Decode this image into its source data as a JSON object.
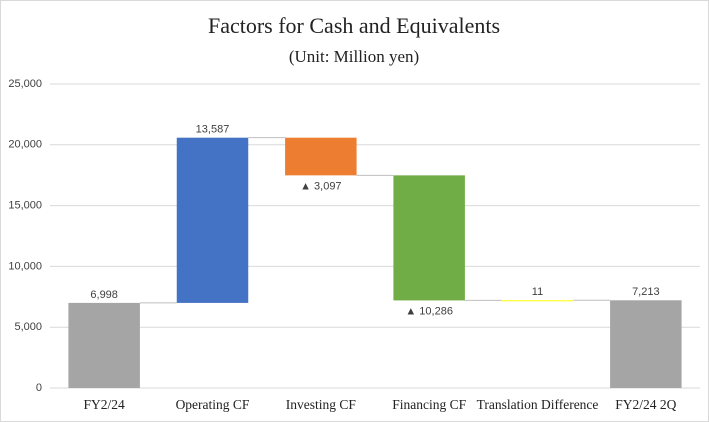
{
  "chart_data": {
    "type": "waterfall",
    "title": "Factors for Cash and Equivalents",
    "subtitle": "(Unit: Million yen)",
    "categories": [
      "FY2/24",
      "Operating CF",
      "Investing CF",
      "Financing CF",
      "Translation Difference",
      "FY2/24 2Q"
    ],
    "measure": [
      "absolute",
      "relative",
      "relative",
      "relative",
      "relative",
      "absolute"
    ],
    "values": [
      6998,
      13587,
      -3097,
      -10286,
      11,
      7213
    ],
    "value_labels": [
      "6,998",
      "13,587",
      "▲ 3,097",
      "▲ 10,286",
      "11",
      "7,213"
    ],
    "colors": [
      "#a5a5a5",
      "#4472c4",
      "#ed7d31",
      "#70ad47",
      "#ffff00",
      "#a5a5a5"
    ],
    "ylim": [
      0,
      25000
    ],
    "yticks": [
      0,
      {
        "value": 5000,
        "label": "5,000"
      },
      {
        "value": 10000,
        "label": "10,000"
      },
      {
        "value": 15000,
        "label": "15,000"
      },
      {
        "value": 20000,
        "label": "20,000"
      },
      {
        "value": 25000,
        "label": "25,000"
      }
    ],
    "grid": true
  }
}
